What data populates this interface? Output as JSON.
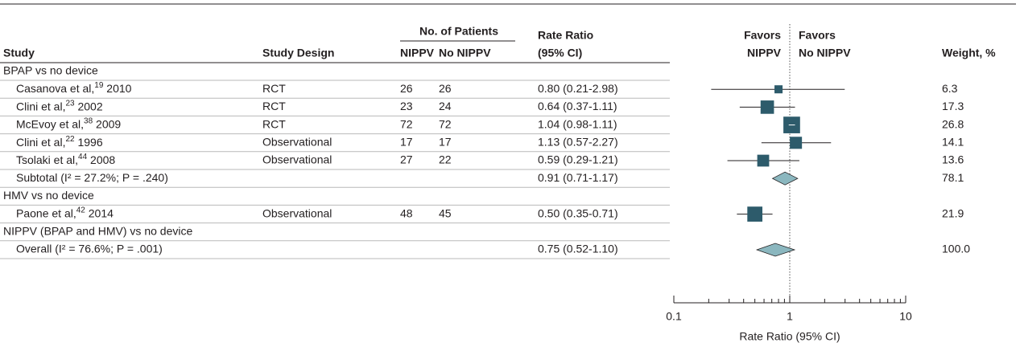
{
  "chart_data": {
    "type": "forest",
    "columns": {
      "study": "Study",
      "design": "Study Design",
      "patients": "No. of Patients",
      "nippv": "NIPPV",
      "no_nippv": "No NIPPV",
      "rate_ratio": [
        "Rate Ratio",
        "(95% CI)"
      ],
      "favors_left": [
        "Favors",
        "NIPPV"
      ],
      "favors_right": [
        "Favors",
        "No NIPPV"
      ],
      "weight": "Weight, %"
    },
    "rows": [
      {
        "label": "BPAP vs no device"
      },
      {
        "study": "Casanova et al,",
        "ref": "19",
        "year": "2010",
        "design": "RCT",
        "nippv": 26,
        "no_nippv": 26,
        "rr": 0.8,
        "lo": 0.21,
        "hi": 2.98,
        "ci_label": "0.80 (0.21-2.98)",
        "weight": 6.3
      },
      {
        "study": "Clini et al,",
        "ref": "23",
        "year": "2002",
        "design": "RCT",
        "nippv": 23,
        "no_nippv": 24,
        "rr": 0.64,
        "lo": 0.37,
        "hi": 1.11,
        "ci_label": "0.64 (0.37-1.11)",
        "weight": 17.3
      },
      {
        "study": "McEvoy et al,",
        "ref": "38",
        "year": "2009",
        "design": "RCT",
        "nippv": 72,
        "no_nippv": 72,
        "rr": 1.04,
        "lo": 0.98,
        "hi": 1.11,
        "ci_label": "1.04 (0.98-1.11)",
        "weight": 26.8
      },
      {
        "study": "Clini et al,",
        "ref": "22",
        "year": "1996",
        "design": "Observational",
        "nippv": 17,
        "no_nippv": 17,
        "rr": 1.13,
        "lo": 0.57,
        "hi": 2.27,
        "ci_label": "1.13 (0.57-2.27)",
        "weight": 14.1
      },
      {
        "study": "Tsolaki et al,",
        "ref": "44",
        "year": "2008",
        "design": "Observational",
        "nippv": 27,
        "no_nippv": 22,
        "rr": 0.59,
        "lo": 0.29,
        "hi": 1.21,
        "ci_label": "0.59 (0.29-1.21)",
        "weight": 13.6
      },
      {
        "label": "Subtotal (I² = 27.2%; P = .240)",
        "rr": 0.91,
        "lo": 0.71,
        "hi": 1.17,
        "ci_label": "0.91 (0.71-1.17)",
        "weight": 78.1
      },
      {
        "label": "HMV vs no device"
      },
      {
        "study": "Paone et al,",
        "ref": "42",
        "year": "2014",
        "design": "Observational",
        "nippv": 48,
        "no_nippv": 45,
        "rr": 0.5,
        "lo": 0.35,
        "hi": 0.71,
        "ci_label": "0.50 (0.35-0.71)",
        "weight": 21.9
      },
      {
        "label": "NIPPV (BPAP and HMV) vs no device"
      },
      {
        "label": "Overall (I² = 76.6%; P = .001)",
        "rr": 0.75,
        "lo": 0.52,
        "hi": 1.1,
        "ci_label": "0.75 (0.52-1.10)",
        "weight": 100,
        "weight_label": "100.0"
      }
    ],
    "x_label": "Rate Ratio (95% CI)",
    "log_x": true,
    "xlim": [
      0.1,
      10
    ],
    "xticks": [
      0.1,
      1,
      10
    ],
    "xminorticks": [
      0.2,
      0.3,
      0.4,
      0.5,
      0.6,
      0.7,
      0.8,
      0.9,
      2,
      3,
      4,
      5,
      6,
      7,
      8,
      9
    ],
    "reference": 1,
    "marker_color": "#2d5b6b",
    "diamond_color": "#8bb7bf"
  }
}
